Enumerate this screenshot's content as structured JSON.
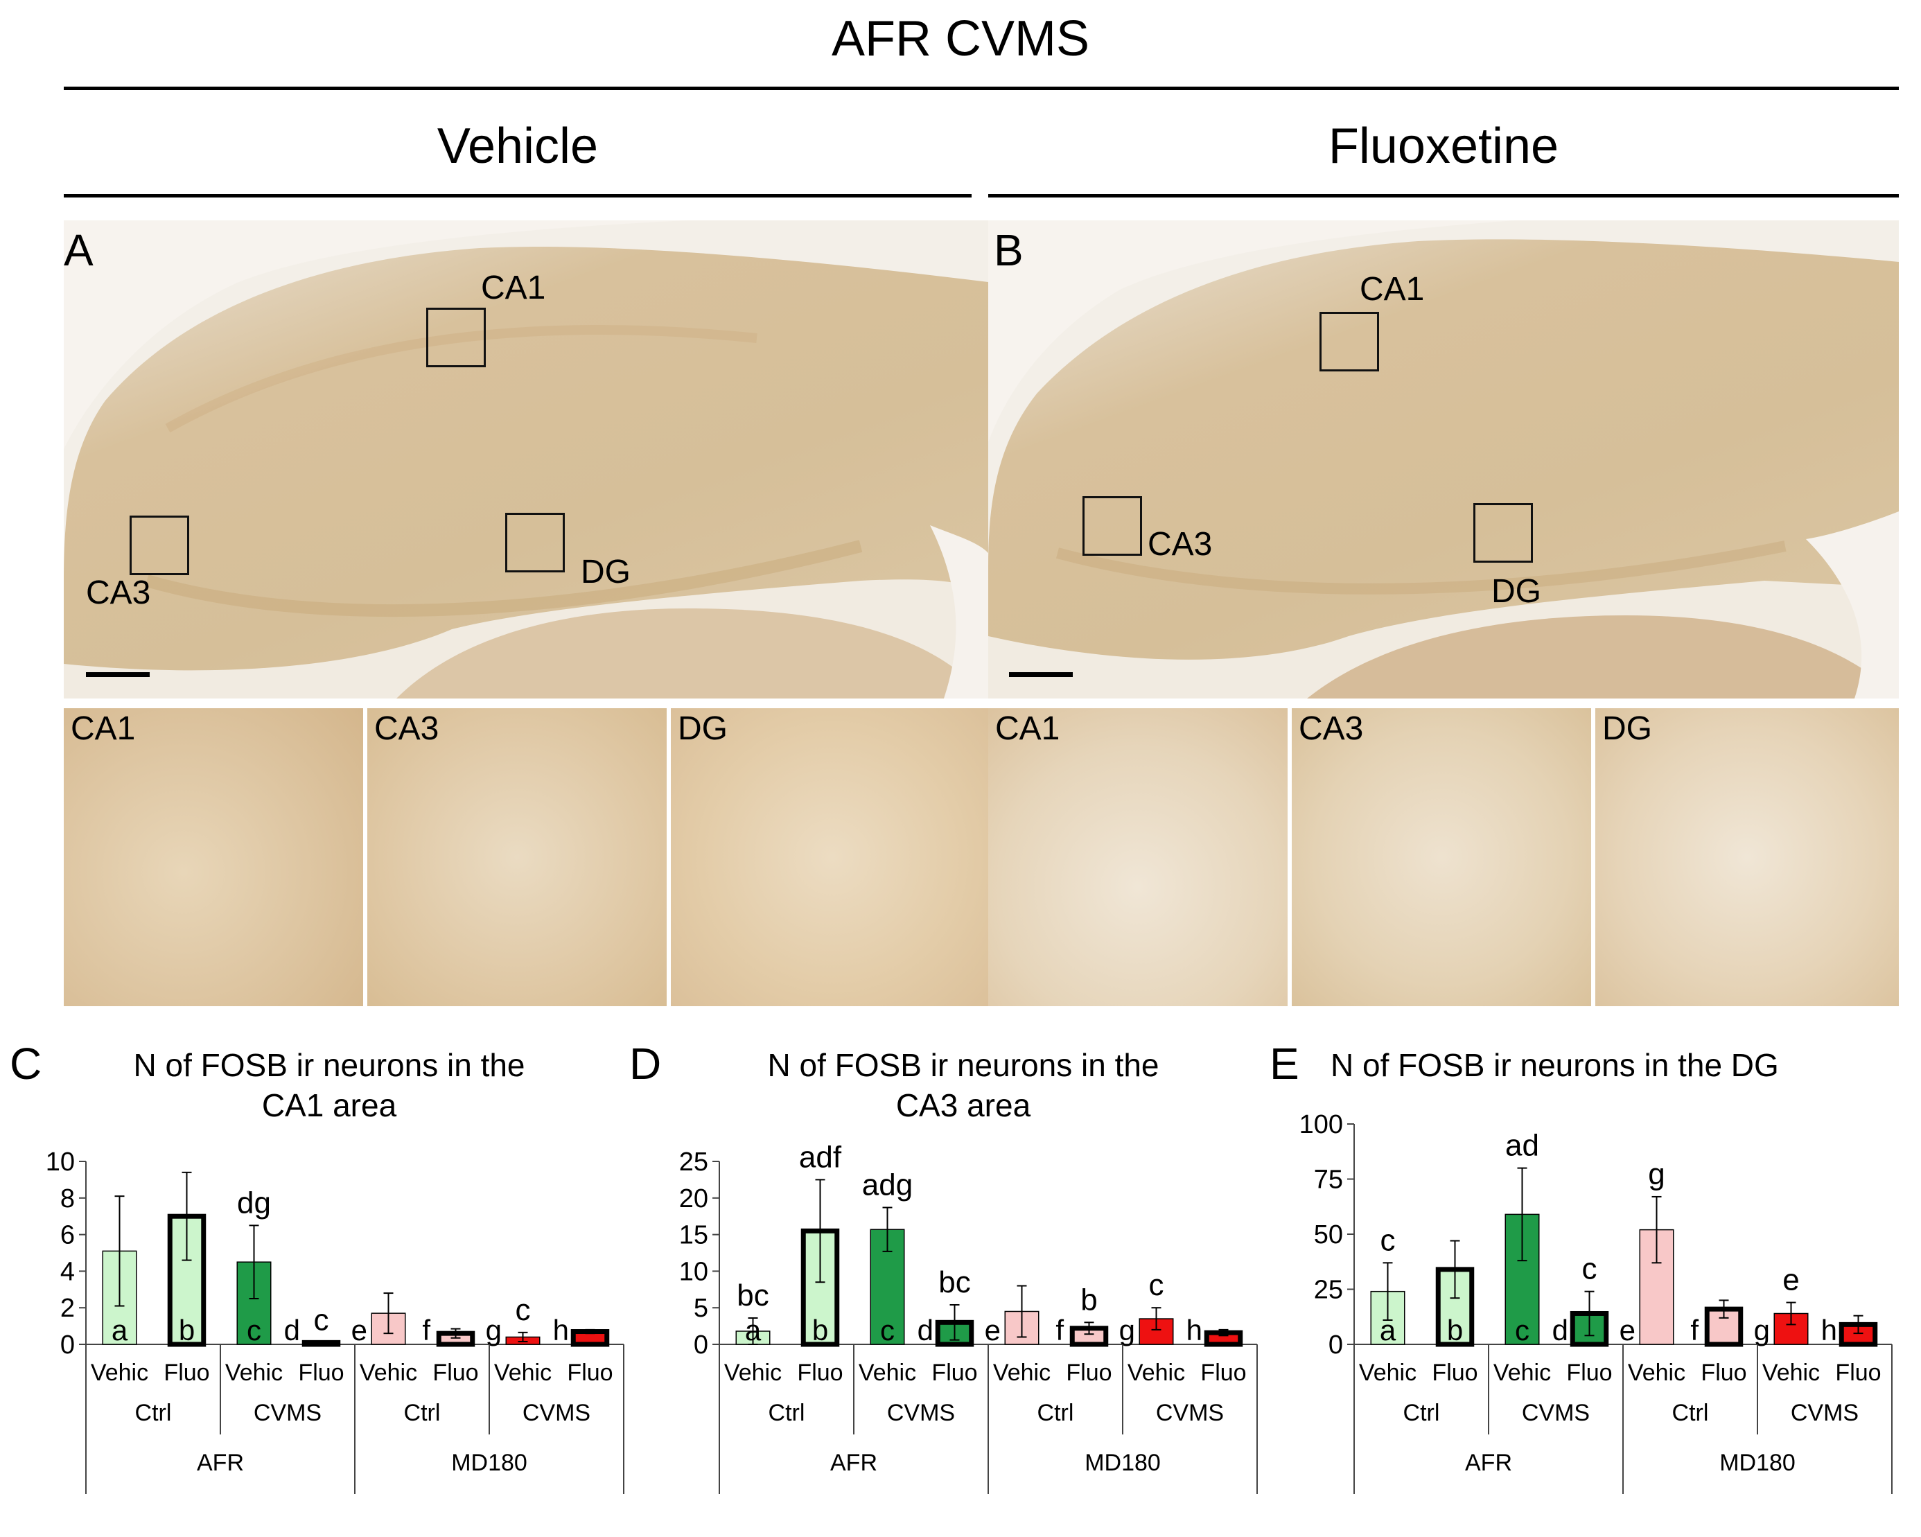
{
  "figure": {
    "main_title": "AFR CVMS",
    "vehicle_header": "Vehicle",
    "fluoxetine_header": "Fluoxetine"
  },
  "panelA": {
    "letter": "A",
    "roi_labels": {
      "ca1": "CA1",
      "ca3": "CA3",
      "dg": "DG"
    },
    "insets": [
      "CA1",
      "CA3",
      "DG"
    ]
  },
  "panelB": {
    "letter": "B",
    "roi_labels": {
      "ca1": "CA1",
      "ca3": "CA3",
      "dg": "DG"
    },
    "insets": [
      "CA1",
      "CA3",
      "DG"
    ]
  },
  "colors": {
    "tissue": "#d9c4a0",
    "tissue_light": "#f2ece2",
    "stain_dark": "#b07a3a",
    "afr_ctrl": "#ccf5cc",
    "afr_cvms": "#1f9b48",
    "md180_ctrl": "#f8c8c8",
    "md180_cvms": "#ee1111"
  },
  "chart_data": [
    {
      "type": "bar",
      "panel_letter": "C",
      "title_line1": "N of FOSB ir neurons in the",
      "title_line2": "CA1 area",
      "ylim": [
        0,
        10
      ],
      "yticks": [
        0,
        2,
        4,
        6,
        8,
        10
      ],
      "ytick_labels": [
        "0",
        "2",
        "4",
        "6",
        "8",
        "10"
      ],
      "categories": [
        "Vehic",
        "Fluo",
        "Vehic",
        "Fluo",
        "Vehic",
        "Fluo",
        "Vehic",
        "Fluo"
      ],
      "group_level1": [
        "Ctrl",
        "CVMS",
        "Ctrl",
        "CVMS"
      ],
      "group_level2": [
        "AFR",
        "MD180"
      ],
      "values": [
        5.1,
        7.0,
        4.5,
        0.1,
        1.7,
        0.6,
        0.4,
        0.7
      ],
      "errors": [
        3.0,
        2.4,
        2.0,
        0.0,
        1.1,
        0.25,
        0.25,
        0.1
      ],
      "fills": [
        "#ccf5cc",
        "#ccf5cc",
        "#1f9b48",
        "#1f9b48",
        "#f8c8c8",
        "#f8c8c8",
        "#ee1111",
        "#ee1111"
      ],
      "thick_border": [
        false,
        true,
        false,
        true,
        false,
        true,
        false,
        true
      ],
      "top_letters": [
        "",
        "",
        "dg",
        "c",
        "",
        "",
        "c",
        ""
      ],
      "bottom_letters": [
        "a",
        "b",
        "c",
        "d",
        "e",
        "f",
        "g",
        "h"
      ]
    },
    {
      "type": "bar",
      "panel_letter": "D",
      "title_line1": "N of FOSB ir neurons in the",
      "title_line2": "CA3 area",
      "ylim": [
        0,
        25
      ],
      "yticks": [
        0,
        5,
        10,
        15,
        20,
        25
      ],
      "ytick_labels": [
        "0",
        "5",
        "10",
        "15",
        "20",
        "25"
      ],
      "categories": [
        "Vehic",
        "Fluo",
        "Vehic",
        "Fluo",
        "Vehic",
        "Fluo",
        "Vehic",
        "Fluo"
      ],
      "group_level1": [
        "Ctrl",
        "CVMS",
        "Ctrl",
        "CVMS"
      ],
      "group_level2": [
        "AFR",
        "MD180"
      ],
      "values": [
        1.8,
        15.5,
        15.7,
        3.0,
        4.5,
        2.2,
        3.5,
        1.6
      ],
      "errors": [
        1.8,
        7.0,
        3.0,
        2.4,
        3.5,
        0.8,
        1.5,
        0.4
      ],
      "fills": [
        "#ccf5cc",
        "#ccf5cc",
        "#1f9b48",
        "#1f9b48",
        "#f8c8c8",
        "#f8c8c8",
        "#ee1111",
        "#ee1111"
      ],
      "thick_border": [
        false,
        true,
        false,
        true,
        false,
        true,
        false,
        true
      ],
      "top_letters": [
        "bc",
        "adf",
        "adg",
        "bc",
        "",
        "b",
        "c",
        ""
      ],
      "bottom_letters": [
        "a",
        "b",
        "c",
        "d",
        "e",
        "f",
        "g",
        "h"
      ]
    },
    {
      "type": "bar",
      "panel_letter": "E",
      "title_line1": "N of FOSB ir neurons in the DG",
      "title_line2": "",
      "ylim": [
        0,
        100
      ],
      "yticks": [
        0,
        25,
        50,
        75,
        100
      ],
      "ytick_labels": [
        "0",
        "25",
        "50",
        "75",
        "100"
      ],
      "categories": [
        "Vehic",
        "Fluo",
        "Vehic",
        "Fluo",
        "Vehic",
        "Fluo",
        "Vehic",
        "Fluo"
      ],
      "group_level1": [
        "Ctrl",
        "CVMS",
        "Ctrl",
        "CVMS"
      ],
      "group_level2": [
        "AFR",
        "MD180"
      ],
      "values": [
        24,
        34,
        59,
        14,
        52,
        16,
        14,
        9
      ],
      "errors": [
        13,
        13,
        21,
        10,
        15,
        4,
        5,
        4
      ],
      "fills": [
        "#ccf5cc",
        "#ccf5cc",
        "#1f9b48",
        "#1f9b48",
        "#f8c8c8",
        "#f8c8c8",
        "#ee1111",
        "#ee1111"
      ],
      "thick_border": [
        false,
        true,
        false,
        true,
        false,
        true,
        false,
        true
      ],
      "top_letters": [
        "c",
        "",
        "ad",
        "c",
        "g",
        "",
        "e",
        ""
      ],
      "bottom_letters": [
        "a",
        "b",
        "c",
        "d",
        "e",
        "f",
        "g",
        "h"
      ]
    }
  ]
}
